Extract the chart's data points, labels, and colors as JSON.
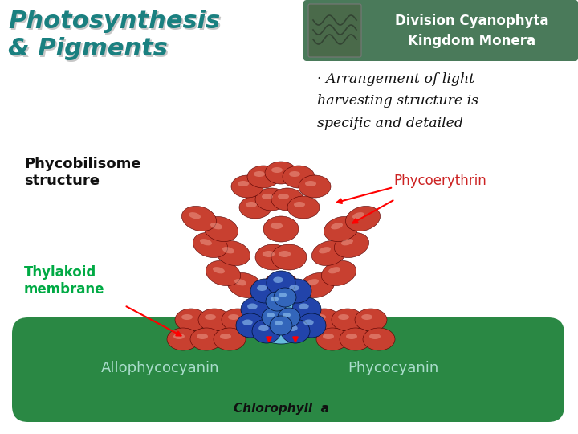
{
  "background_color": "#ffffff",
  "title_color": "#1a8080",
  "title_shadow_color": "#999999",
  "banner_bg_color": "#4a7a5a",
  "banner_text1": "Division Cyanophyta",
  "banner_text2": "Kingdom Monera",
  "banner_text_color": "#ffffff",
  "bullet_text": "· Arrangement of light\nharvesting structure is\nspecific and detailed",
  "bullet_text_color": "#111111",
  "phycobilisome_label": "Phycobilisome\nstructure",
  "phycobilisome_color": "#111111",
  "thylakoid_label": "Thylakoid\nmembrane",
  "thylakoid_color": "#00aa44",
  "phycoerythrin_label": "Phycoerythrin",
  "phycoerythrin_color": "#cc2222",
  "membrane_label1": "Allophycocyanin",
  "membrane_label2": "Phycocyanin",
  "membrane_text_color": "#aaddcc",
  "chlorophyll_label": "Chlorophyll  a",
  "chlorophyll_color": "#111111",
  "membrane_color": "#2a8844",
  "red_color": "#c84030",
  "blue_light_color": "#66bbdd",
  "blue_dark_color": "#2244aa",
  "blue_mid_color": "#3366bb"
}
